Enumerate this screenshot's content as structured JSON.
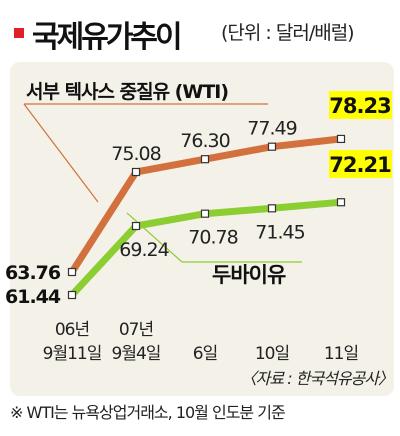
{
  "header": {
    "title": "국제유가추이",
    "unit": "(단위 : 달러/배럴)"
  },
  "chart_data": {
    "type": "line",
    "title": "국제유가추이",
    "unit": "(단위 : 달러/배럴)",
    "categories": [
      {
        "line1": "06년",
        "line2": "9월11일"
      },
      {
        "line1": "07년",
        "line2": "9월4일"
      },
      {
        "line1": "",
        "line2": "6일"
      },
      {
        "line1": "",
        "line2": "10일"
      },
      {
        "line1": "",
        "line2": "11일"
      }
    ],
    "series": [
      {
        "name": "서부 텍사스 중질유 (WTI)",
        "values": [
          63.76,
          75.08,
          76.3,
          77.49,
          78.23
        ],
        "color": "#d2713d"
      },
      {
        "name": "두바이유",
        "values": [
          61.44,
          69.24,
          70.78,
          71.45,
          72.21
        ],
        "color": "#8ccd32"
      }
    ],
    "highlight_color": "#ffff00",
    "grid": false,
    "source": "〈자료 : 한국석유공사〉"
  },
  "footnote": "※ WTI는 뉴욕상업거래소, 10월 인도분 기준"
}
